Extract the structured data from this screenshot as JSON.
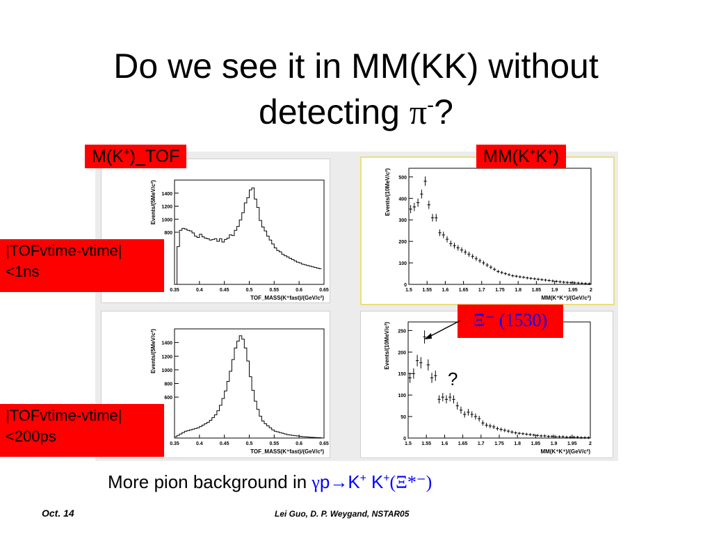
{
  "slide": {
    "title_line1": "Do we see it in MM(KK) without",
    "title_line2_text": "detecting ",
    "title_line2_symbol": "π",
    "title_line2_sup": "-",
    "title_line2_end": "?"
  },
  "labels": {
    "tof_main": "M(K",
    "tof_sup": "+",
    "tof_end": ")_TOF",
    "mm_main": "MM(K",
    "mm_sup1": "+",
    "mm_mid": "K",
    "mm_sup2": "+",
    "mm_end": ")",
    "cut1_line1": "|TOFvtime-vtime|",
    "cut1_line2": "<1ns",
    "cut2_line1": "|TOFvtime-vtime|",
    "cut2_line2": "<200ps",
    "xi_text": "Ξ⁻ (1530)",
    "question": "?"
  },
  "bottom": {
    "text": "More pion background in ",
    "gamma": "γ",
    "p": "p",
    "arrow": "→",
    "k1": "K",
    "k1_sup": "+",
    "k2": " K",
    "k2_sup": "+",
    "xi": "(Ξ*⁻)"
  },
  "footer": {
    "left": "Oct. 14",
    "center": "Lei Guo, D. P. Weygand, NSTAR05"
  },
  "colors": {
    "label_bg": "#ff0000",
    "accent_blue": "#0000ff",
    "selected_border": "#e8e07a"
  },
  "chart_data": [
    {
      "type": "histogram",
      "xlabel": "TOF_MASS(K⁺fast)/(GeV/c²)",
      "ylabel": "Events/(5MeV/c²)",
      "xlim": [
        0.35,
        0.65
      ],
      "ylim": [
        0,
        1600
      ],
      "xticks": [
        "0.35",
        "0.4",
        "0.45",
        "0.5",
        "0.55",
        "0.6",
        "0.65"
      ],
      "yticks": [
        "800",
        "1000",
        "1200",
        "1400"
      ],
      "x": [
        0.35,
        0.355,
        0.36,
        0.365,
        0.37,
        0.375,
        0.38,
        0.385,
        0.39,
        0.395,
        0.4,
        0.405,
        0.41,
        0.415,
        0.42,
        0.425,
        0.43,
        0.435,
        0.44,
        0.445,
        0.45,
        0.455,
        0.46,
        0.465,
        0.47,
        0.475,
        0.48,
        0.485,
        0.49,
        0.495,
        0.5,
        0.505,
        0.51,
        0.515,
        0.52,
        0.525,
        0.53,
        0.535,
        0.54,
        0.545,
        0.55,
        0.555,
        0.56,
        0.565,
        0.57,
        0.575,
        0.58,
        0.585,
        0.59,
        0.595,
        0.6,
        0.605,
        0.61,
        0.615,
        0.62,
        0.625,
        0.63,
        0.635,
        0.64
      ],
      "values": [
        0,
        580,
        830,
        860,
        850,
        830,
        820,
        790,
        740,
        720,
        770,
        730,
        710,
        700,
        680,
        690,
        700,
        660,
        700,
        650,
        690,
        710,
        760,
        750,
        830,
        890,
        990,
        1100,
        1250,
        1330,
        1450,
        1480,
        1310,
        1180,
        980,
        880,
        820,
        740,
        680,
        620,
        560,
        520,
        500,
        460,
        440,
        420,
        400,
        380,
        360,
        340,
        330,
        310,
        300,
        290,
        280,
        270,
        260,
        250,
        240
      ]
    },
    {
      "type": "scatter",
      "xlabel": "MM(K⁺K⁺)/(GeV/c²)",
      "ylabel": "Events/(10MeV/c²)",
      "xlim": [
        1.5,
        2.0
      ],
      "ylim": [
        0,
        540
      ],
      "xticks": [
        "1.5",
        "1.55",
        "1.6",
        "1.65",
        "1.7",
        "1.75",
        "1.8",
        "1.85",
        "1.9",
        "1.95",
        "2"
      ],
      "yticks": [
        "0",
        "100",
        "200",
        "300",
        "400",
        "500"
      ],
      "x": [
        1.505,
        1.515,
        1.525,
        1.535,
        1.545,
        1.555,
        1.565,
        1.575,
        1.585,
        1.595,
        1.605,
        1.615,
        1.625,
        1.635,
        1.645,
        1.655,
        1.665,
        1.675,
        1.685,
        1.695,
        1.705,
        1.715,
        1.725,
        1.735,
        1.745,
        1.755,
        1.765,
        1.775,
        1.785,
        1.795,
        1.805,
        1.815,
        1.825,
        1.835,
        1.845,
        1.855,
        1.865,
        1.875,
        1.885,
        1.895,
        1.905,
        1.915,
        1.925,
        1.935,
        1.945,
        1.955,
        1.965,
        1.975,
        1.985,
        1.995
      ],
      "values": [
        350,
        360,
        380,
        420,
        480,
        370,
        310,
        310,
        240,
        230,
        210,
        190,
        180,
        170,
        160,
        150,
        140,
        130,
        120,
        110,
        100,
        90,
        80,
        70,
        60,
        55,
        50,
        45,
        40,
        38,
        35,
        33,
        30,
        28,
        26,
        24,
        22,
        20,
        18,
        16,
        14,
        12,
        10,
        9,
        8,
        7,
        6,
        5,
        4,
        3
      ]
    },
    {
      "type": "histogram",
      "xlabel": "TOF_MASS(K⁺fast)/(GeV/c²)",
      "ylabel": "Events/(5MeV/c²)",
      "xlim": [
        0.35,
        0.65
      ],
      "ylim": [
        0,
        1600
      ],
      "xticks": [
        "0.35",
        "0.4",
        "0.45",
        "0.5",
        "0.55",
        "0.6",
        "0.65"
      ],
      "yticks": [
        "600",
        "800",
        "1000",
        "1200",
        "1400"
      ],
      "x": [
        0.35,
        0.355,
        0.36,
        0.365,
        0.37,
        0.375,
        0.38,
        0.385,
        0.39,
        0.395,
        0.4,
        0.405,
        0.41,
        0.415,
        0.42,
        0.425,
        0.43,
        0.435,
        0.44,
        0.445,
        0.45,
        0.455,
        0.46,
        0.465,
        0.47,
        0.475,
        0.48,
        0.485,
        0.49,
        0.495,
        0.5,
        0.505,
        0.51,
        0.515,
        0.52,
        0.525,
        0.53,
        0.535,
        0.54,
        0.545,
        0.55,
        0.555,
        0.56,
        0.565,
        0.57,
        0.575,
        0.58,
        0.585,
        0.59,
        0.595,
        0.6,
        0.605,
        0.61,
        0.615,
        0.62,
        0.625,
        0.63,
        0.635,
        0.64
      ],
      "values": [
        20,
        40,
        60,
        80,
        100,
        110,
        120,
        130,
        140,
        150,
        170,
        190,
        210,
        230,
        260,
        300,
        340,
        400,
        480,
        580,
        690,
        830,
        980,
        1150,
        1320,
        1420,
        1500,
        1450,
        1320,
        1130,
        900,
        700,
        540,
        420,
        320,
        250,
        210,
        180,
        150,
        120,
        100,
        90,
        80,
        70,
        60,
        50,
        45,
        40,
        35,
        30,
        25,
        20,
        18,
        15,
        12,
        10,
        8,
        6,
        5
      ]
    },
    {
      "type": "scatter",
      "xlabel": "MM(K⁺K⁺)/(GeV/c²)",
      "ylabel": "Events/(10MeV/c²)",
      "xlim": [
        1.5,
        2.0
      ],
      "ylim": [
        0,
        270
      ],
      "xticks": [
        "1.5",
        "1.55",
        "1.6",
        "1.65",
        "1.7",
        "1.75",
        "1.8",
        "1.85",
        "1.9",
        "1.95",
        "2"
      ],
      "yticks": [
        "0",
        "50",
        "100",
        "150",
        "200",
        "250"
      ],
      "x": [
        1.505,
        1.515,
        1.525,
        1.535,
        1.545,
        1.555,
        1.565,
        1.575,
        1.585,
        1.595,
        1.605,
        1.615,
        1.625,
        1.635,
        1.645,
        1.655,
        1.665,
        1.675,
        1.685,
        1.695,
        1.705,
        1.715,
        1.725,
        1.735,
        1.745,
        1.755,
        1.765,
        1.775,
        1.785,
        1.795,
        1.805,
        1.815,
        1.825,
        1.835,
        1.845,
        1.855,
        1.865,
        1.875,
        1.885,
        1.895,
        1.905,
        1.915,
        1.925,
        1.935,
        1.945,
        1.955,
        1.965,
        1.975,
        1.985,
        1.995
      ],
      "values": [
        140,
        150,
        180,
        175,
        235,
        170,
        140,
        145,
        90,
        95,
        90,
        95,
        90,
        75,
        65,
        55,
        60,
        55,
        50,
        45,
        35,
        30,
        28,
        26,
        22,
        20,
        18,
        16,
        14,
        12,
        11,
        10,
        9,
        8,
        7,
        6,
        5,
        5,
        4,
        4,
        3,
        3,
        3,
        2,
        2,
        2,
        2,
        1,
        1,
        1
      ]
    }
  ]
}
